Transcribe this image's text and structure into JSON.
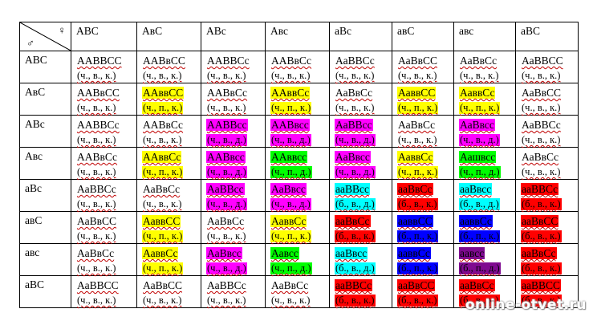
{
  "punnett": {
    "corner": {
      "female_symbol": "♀",
      "male_symbol": "♂"
    },
    "col_headers": [
      "АВС",
      "АвС",
      "АВс",
      "Авс",
      "аВс",
      "авС",
      "авс",
      "аВС"
    ],
    "rows": [
      {
        "header": "АВС",
        "cells": [
          {
            "g": "ААВВСС",
            "p": "(ч., в., к.)",
            "bg": ""
          },
          {
            "g": "ААВвСС",
            "p": "(ч., в., к.)",
            "bg": ""
          },
          {
            "g": "ААВВСс",
            "p": "(ч., в., к.)",
            "bg": ""
          },
          {
            "g": "ААВвСс",
            "p": "(ч., в., к.)",
            "bg": ""
          },
          {
            "g": "АаВВСс",
            "p": "(ч., в., к.)",
            "bg": ""
          },
          {
            "g": "АаВвСС",
            "p": "(ч., в., к.)",
            "bg": ""
          },
          {
            "g": "АаВвСс",
            "p": "(ч., в., к.)",
            "bg": ""
          },
          {
            "g": "АаВВСС",
            "p": "(ч., в., к.)",
            "bg": ""
          }
        ]
      },
      {
        "header": "АвС",
        "cells": [
          {
            "g": "ААВвСС",
            "p": "(ч., в., к.)",
            "bg": ""
          },
          {
            "g": "ААввСС",
            "p": "(ч., п., к.)",
            "bg": "#ffff00"
          },
          {
            "g": "ААВвСс",
            "p": "(ч., в., к.)",
            "bg": ""
          },
          {
            "g": "ААввСс",
            "p": "(ч., п., к.)",
            "bg": "#ffff00"
          },
          {
            "g": "АаВвСс",
            "p": "(ч., в., к.)",
            "bg": ""
          },
          {
            "g": "АаввСС",
            "p": "(ч., п., к.)",
            "bg": "#ffff00"
          },
          {
            "g": "АаввСс",
            "p": "(ч., п., к.)",
            "bg": "#ffff00"
          },
          {
            "g": "АаВвСС",
            "p": "(ч., в., к.)",
            "bg": ""
          }
        ]
      },
      {
        "header": "АВс",
        "cells": [
          {
            "g": "ААВВСс",
            "p": "(ч., в., к.)",
            "bg": ""
          },
          {
            "g": "ААВвСс",
            "p": "(ч., в., к.)",
            "bg": ""
          },
          {
            "g": "ААВВсс",
            "p": "(ч., в., д.)",
            "bg": "#ff00ff"
          },
          {
            "g": "ААВвсс",
            "p": "(ч., в., д.)",
            "bg": "#ff00ff"
          },
          {
            "g": "АаВВсс",
            "p": "(ч., в., д.)",
            "bg": "#ff00ff"
          },
          {
            "g": "АаВвСс",
            "p": "(ч., в., к.)",
            "bg": ""
          },
          {
            "g": "АаВвсс",
            "p": "(ч., в., д.)",
            "bg": "#ff00ff"
          },
          {
            "g": "АаВВСс",
            "p": "(ч., в., к.)",
            "bg": ""
          }
        ]
      },
      {
        "header": "Авс",
        "cells": [
          {
            "g": "ААВвСс",
            "p": "(ч., в., к.)",
            "bg": ""
          },
          {
            "g": "ААввСс",
            "p": "(ч., п., к.)",
            "bg": "#ffff00"
          },
          {
            "g": "ААВвсс",
            "p": "(ч., в., д.)",
            "bg": "#ff00ff"
          },
          {
            "g": "ААввсс",
            "p": "(ч., п., д.)",
            "bg": "#00ff00"
          },
          {
            "g": "АаВвсс",
            "p": "(ч., в., д.)",
            "bg": "#ff00ff"
          },
          {
            "g": "АаввСс",
            "p": "(ч., п., к.)",
            "bg": "#ffff00"
          },
          {
            "g": "Аашвсс",
            "p": "(ч., п., д.)",
            "bg": "#00ff00"
          },
          {
            "g": "АаВвСс",
            "p": "(ч., в., к.)",
            "bg": ""
          }
        ]
      },
      {
        "header": "аВс",
        "cells": [
          {
            "g": "АаВВСс",
            "p": "(ч., в., к.)",
            "bg": ""
          },
          {
            "g": "АаВвСс",
            "p": "(ч., в., к.)",
            "bg": ""
          },
          {
            "g": "АаВВсс",
            "p": "(ч., в., д.)",
            "bg": "#ff00ff"
          },
          {
            "g": "АаВвсс",
            "p": "(ч., в., д.)",
            "bg": "#ff00ff"
          },
          {
            "g": "ааВВсс",
            "p": "(б., в., д.)",
            "bg": "#00ffff"
          },
          {
            "g": "ааВвСс",
            "p": "(б., в., к.)",
            "bg": "#ff0000"
          },
          {
            "g": "ааВвсс",
            "p": "(б., в., д.)",
            "bg": "#00ffff"
          },
          {
            "g": "ааВВСс",
            "p": "(б., в., к.)",
            "bg": "#ff0000"
          }
        ]
      },
      {
        "header": "авС",
        "cells": [
          {
            "g": "АаВвСС",
            "p": "(ч., в., к.)",
            "bg": ""
          },
          {
            "g": "АаввСС",
            "p": "(ч., п., к.)",
            "bg": "#ffff00"
          },
          {
            "g": "АаВвСс",
            "p": "(ч., в., к.)",
            "bg": ""
          },
          {
            "g": "АаввСс",
            "p": "(ч., п., к.)",
            "bg": "#ffff00"
          },
          {
            "g": "ааВвСс",
            "p": "(б., в., к.)",
            "bg": "#ff0000"
          },
          {
            "g": "ааввСС",
            "p": "(б., п., к.)",
            "bg": "#0000ff"
          },
          {
            "g": "ааввСс",
            "p": "(б., п., к.)",
            "bg": "#0000ff"
          },
          {
            "g": "ааВвСС",
            "p": "(б., в., к.)",
            "bg": "#ff0000"
          }
        ]
      },
      {
        "header": "авс",
        "cells": [
          {
            "g": "АаВвСс",
            "p": "(ч., в., к.)",
            "bg": ""
          },
          {
            "g": "АаввСс",
            "p": "(ч., п., к.)",
            "bg": "#ffff00"
          },
          {
            "g": "АаВвсс",
            "p": "(ч., в., д.)",
            "bg": "#ff00ff"
          },
          {
            "g": "Аавсс",
            "p": "(ч., п., д.)",
            "bg": "#00ff00"
          },
          {
            "g": "ааВвсс",
            "p": "(б., в., д.)",
            "bg": "#00ffff"
          },
          {
            "g": "ааввСс",
            "p": "(б., п., к.)",
            "bg": "#0000ff"
          },
          {
            "g": "аавсс",
            "p": "(б., п., д.)",
            "bg": "#7f0a90"
          },
          {
            "g": "ааВвСс",
            "p": "(б., в., к.)",
            "bg": "#ff0000"
          }
        ]
      },
      {
        "header": "аВС",
        "cells": [
          {
            "g": "АаВВСС",
            "p": "(ч., в., к.)",
            "bg": ""
          },
          {
            "g": "АаВвСС",
            "p": "(ч., в., к.)",
            "bg": ""
          },
          {
            "g": "АаВВСс",
            "p": "(ч., в., к.)",
            "bg": ""
          },
          {
            "g": "АаВвСс",
            "p": "(ч., в., к.)",
            "bg": ""
          },
          {
            "g": "ааВВСс",
            "p": "(б., в., к.)",
            "bg": "#ff0000"
          },
          {
            "g": "ааВвСС",
            "p": "(б., в., к.)",
            "bg": "#ff0000"
          },
          {
            "g": "ааВвСс",
            "p": "(б., в., к.)",
            "bg": "#ff0000"
          },
          {
            "g": "ааВВСС",
            "p": "(б., в., к.)",
            "bg": "#ff0000"
          }
        ]
      }
    ]
  },
  "watermark": "online-otvet.ru"
}
